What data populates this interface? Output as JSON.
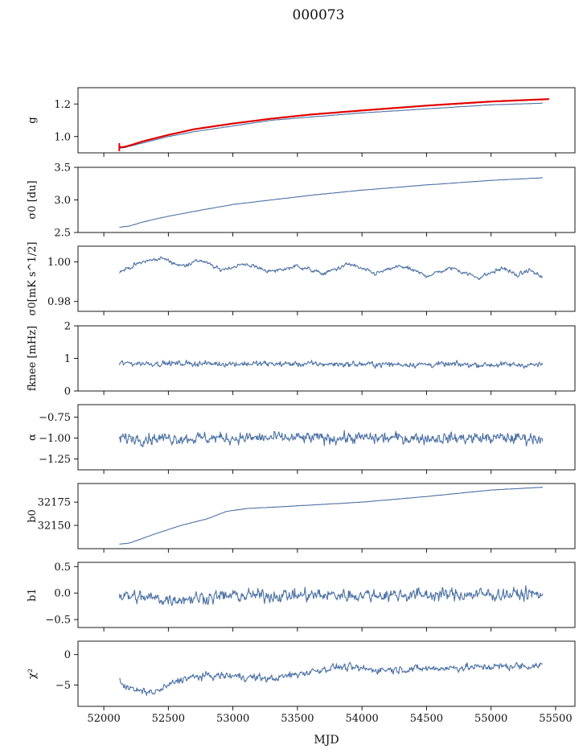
{
  "figure": {
    "title": "000073",
    "xlabel": "MJD"
  },
  "colors": {
    "series": "#4c72a4",
    "fit": "#e00000",
    "axis": "#000000"
  },
  "chart_data": [
    {
      "type": "line",
      "ylabel": "g",
      "ylabel_html": "g",
      "ylim": [
        0.9,
        1.3
      ],
      "yticks": [
        1.0,
        1.2
      ],
      "ytick_labels": [
        "1.0",
        "1.2"
      ],
      "xlim": [
        51800,
        55650
      ],
      "xticks": [
        52000,
        52500,
        53000,
        53500,
        54000,
        54500,
        55000,
        55500
      ],
      "series": [
        {
          "role": "data",
          "x": [
            52120,
            52150,
            52200,
            52300,
            52400,
            52500,
            52700,
            53000,
            53300,
            53600,
            54000,
            54500,
            55000,
            55400
          ],
          "values": [
            0.93,
            0.93,
            0.94,
            0.96,
            0.98,
            1.0,
            1.03,
            1.065,
            1.1,
            1.12,
            1.145,
            1.17,
            1.195,
            1.205
          ]
        },
        {
          "role": "fit",
          "x": [
            52120,
            52150,
            52200,
            52300,
            52400,
            52500,
            52700,
            53000,
            53300,
            53600,
            54000,
            54500,
            55000,
            55450
          ],
          "values": [
            0.935,
            0.935,
            0.945,
            0.97,
            0.99,
            1.01,
            1.045,
            1.08,
            1.11,
            1.135,
            1.16,
            1.19,
            1.215,
            1.23
          ]
        }
      ],
      "errorbar": {
        "x": 52120,
        "y": 0.935,
        "err": 0.025
      }
    },
    {
      "type": "line",
      "ylabel": "σ0 [du]",
      "ylim": [
        2.5,
        3.5
      ],
      "yticks": [
        2.5,
        3.0,
        3.5
      ],
      "ytick_labels": [
        "2.5",
        "3.0",
        "3.5"
      ],
      "series": [
        {
          "role": "data",
          "x": [
            52120,
            52200,
            52300,
            52500,
            52800,
            53000,
            53300,
            53600,
            54000,
            54500,
            55000,
            55400
          ],
          "values": [
            2.58,
            2.6,
            2.66,
            2.75,
            2.86,
            2.93,
            3.0,
            3.07,
            3.15,
            3.23,
            3.3,
            3.34
          ]
        }
      ]
    },
    {
      "type": "line",
      "ylabel": "σ0[mK s^1/2]",
      "ylim": [
        0.975,
        1.008
      ],
      "yticks": [
        0.98,
        1.0
      ],
      "ytick_labels": [
        "0.98",
        "1.00"
      ],
      "series": [
        {
          "role": "data",
          "noise": 0.0012,
          "x": [
            52120,
            52300,
            52450,
            52600,
            52750,
            52900,
            53100,
            53300,
            53500,
            53700,
            53900,
            54100,
            54300,
            54500,
            54700,
            54900,
            55100,
            55200,
            55300,
            55400
          ],
          "values": [
            0.995,
            1.0,
            1.002,
            0.998,
            1.001,
            0.996,
            0.999,
            0.995,
            0.998,
            0.994,
            0.999,
            0.994,
            0.998,
            0.993,
            0.997,
            0.992,
            0.997,
            0.993,
            0.996,
            0.992
          ]
        }
      ]
    },
    {
      "type": "line",
      "ylabel": "fknee [mHz]",
      "ylim": [
        0,
        2
      ],
      "yticks": [
        0,
        1,
        2
      ],
      "ytick_labels": [
        "0",
        "1",
        "2"
      ],
      "series": [
        {
          "role": "data",
          "noise": 0.1,
          "x": [
            52120,
            55400
          ],
          "values": [
            0.85,
            0.8
          ]
        }
      ]
    },
    {
      "type": "line",
      "ylabel": "α",
      "ylim": [
        -1.38,
        -0.6
      ],
      "yticks": [
        -1.25,
        -1.0,
        -0.75
      ],
      "ytick_labels": [
        "−1.25",
        "−1.00",
        "−0.75"
      ],
      "series": [
        {
          "role": "data",
          "noise": 0.08,
          "x": [
            52120,
            55400
          ],
          "values": [
            -1.0,
            -1.0
          ]
        }
      ]
    },
    {
      "type": "line",
      "ylabel": "b0",
      "ylim": [
        32125,
        32195
      ],
      "yticks": [
        32150,
        32175
      ],
      "ytick_labels": [
        "32150",
        "32175"
      ],
      "series": [
        {
          "role": "data",
          "x": [
            52120,
            52200,
            52400,
            52600,
            52800,
            52950,
            53100,
            53500,
            54000,
            54500,
            55000,
            55400
          ],
          "values": [
            32130,
            32131,
            32141,
            32150,
            32157,
            32165,
            32168,
            32171,
            32175,
            32181,
            32188,
            32191
          ]
        }
      ]
    },
    {
      "type": "line",
      "ylabel": "b1",
      "ylim": [
        -0.65,
        0.58
      ],
      "yticks": [
        -0.5,
        0.0,
        0.5
      ],
      "ytick_labels": [
        "−0.5",
        "0.0",
        "0.5"
      ],
      "series": [
        {
          "role": "data",
          "noise": 0.14,
          "x": [
            52120,
            52500,
            53000,
            55400
          ],
          "values": [
            -0.05,
            -0.12,
            -0.05,
            -0.02
          ]
        }
      ]
    },
    {
      "type": "line",
      "ylabel": "χ²",
      "ylim": [
        -8.5,
        2.2
      ],
      "yticks": [
        -5,
        0
      ],
      "ytick_labels": [
        "−5",
        "0"
      ],
      "series": [
        {
          "role": "data",
          "noise": 0.7,
          "x": [
            52120,
            52250,
            52400,
            52600,
            52800,
            53000,
            53300,
            53500,
            53800,
            54100,
            54500,
            55000,
            55400
          ],
          "values": [
            -4.5,
            -6.0,
            -6.2,
            -4.0,
            -3.5,
            -3.5,
            -4.0,
            -3.2,
            -2.0,
            -2.5,
            -2.3,
            -2.0,
            -1.8
          ]
        }
      ]
    }
  ]
}
